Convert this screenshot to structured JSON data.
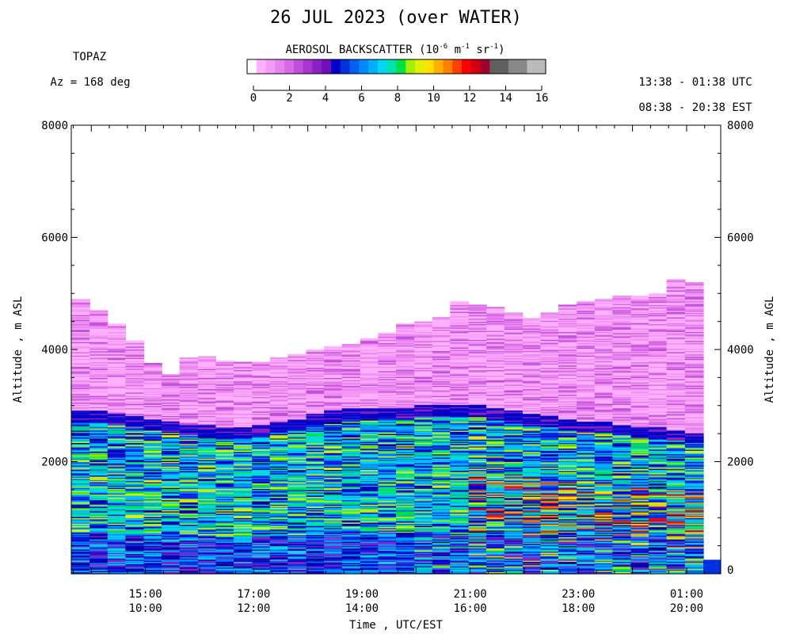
{
  "chart_data": {
    "type": "heatmap",
    "title": "26 JUL 2023 (over WATER)",
    "instrument": "TOPAZ",
    "azimuth_label": "Az = 168 deg",
    "time_utc_range": "13:38 - 01:38 UTC",
    "time_est_range": "08:38 - 20:38 EST",
    "colorbar": {
      "title": "AEROSOL BACKSCATTER (10",
      "title_exp": "-6",
      "title_mid": " m",
      "title_exp2": "-1",
      "title_mid2": " sr",
      "title_exp3": "-1",
      "title_end": ")",
      "range": [
        0,
        16
      ],
      "ticks": [
        "0",
        "2",
        "4",
        "6",
        "8",
        "10",
        "12",
        "14",
        "16"
      ],
      "colors": [
        "#ffffff",
        "#ffb0ff",
        "#f79af7",
        "#e783ef",
        "#d66ae6",
        "#c24fdc",
        "#a636cf",
        "#8a20c4",
        "#6e10bb",
        "#0000c8",
        "#0030e0",
        "#0060f0",
        "#0088ff",
        "#00b0ff",
        "#00d8f0",
        "#00e0b0",
        "#00e040",
        "#a0f000",
        "#e0f000",
        "#ffe000",
        "#ffb000",
        "#ff8000",
        "#ff4000",
        "#ff0000",
        "#d00010",
        "#a00030",
        "#606060",
        "#606060",
        "#888888",
        "#888888",
        "#bbbbbb",
        "#bbbbbb"
      ]
    },
    "xlabel": "Time , UTC/EST",
    "ylabel_left": "Altitude , m ASL",
    "ylabel_right": "Altitude , m AGL",
    "ylim": [
      0,
      8000
    ],
    "yticks_left": [
      "2000",
      "4000",
      "6000",
      "8000"
    ],
    "yticks_right": [
      "0",
      "2000",
      "4000",
      "6000",
      "8000"
    ],
    "y_right_zero_label": "0",
    "xticks_utc": [
      "15:00",
      "17:00",
      "19:00",
      "21:00",
      "23:00",
      "01:00"
    ],
    "xticks_est": [
      "10:00",
      "12:00",
      "14:00",
      "16:00",
      "18:00",
      "20:00"
    ],
    "time_range_hours": [
      13.63,
      25.63
    ],
    "xtick_hours": [
      15,
      17,
      19,
      21,
      23,
      25
    ],
    "profiles": [
      {
        "t": 13.63,
        "top": 4900,
        "pbl": 2900
      },
      {
        "t": 13.97,
        "top": 4700,
        "pbl": 2900
      },
      {
        "t": 14.3,
        "top": 4450,
        "pbl": 2850
      },
      {
        "t": 14.63,
        "top": 4150,
        "pbl": 2800
      },
      {
        "t": 14.97,
        "top": 3750,
        "pbl": 2750
      },
      {
        "t": 15.3,
        "top": 3550,
        "pbl": 2700
      },
      {
        "t": 15.63,
        "top": 3850,
        "pbl": 2650
      },
      {
        "t": 15.97,
        "top": 3870,
        "pbl": 2650
      },
      {
        "t": 16.3,
        "top": 3800,
        "pbl": 2600
      },
      {
        "t": 16.63,
        "top": 3780,
        "pbl": 2600
      },
      {
        "t": 16.97,
        "top": 3780,
        "pbl": 2650
      },
      {
        "t": 17.3,
        "top": 3850,
        "pbl": 2700
      },
      {
        "t": 17.63,
        "top": 3920,
        "pbl": 2750
      },
      {
        "t": 17.97,
        "top": 4000,
        "pbl": 2850
      },
      {
        "t": 18.3,
        "top": 4050,
        "pbl": 2900
      },
      {
        "t": 18.63,
        "top": 4100,
        "pbl": 2950
      },
      {
        "t": 18.97,
        "top": 4200,
        "pbl": 2950
      },
      {
        "t": 19.3,
        "top": 4300,
        "pbl": 2950
      },
      {
        "t": 19.63,
        "top": 4450,
        "pbl": 2950
      },
      {
        "t": 19.97,
        "top": 4500,
        "pbl": 3000
      },
      {
        "t": 20.3,
        "top": 4580,
        "pbl": 3000
      },
      {
        "t": 20.63,
        "top": 4850,
        "pbl": 3000
      },
      {
        "t": 20.97,
        "top": 4800,
        "pbl": 3000
      },
      {
        "t": 21.3,
        "top": 4750,
        "pbl": 2950
      },
      {
        "t": 21.63,
        "top": 4650,
        "pbl": 2900
      },
      {
        "t": 21.97,
        "top": 4550,
        "pbl": 2850
      },
      {
        "t": 22.3,
        "top": 4650,
        "pbl": 2800
      },
      {
        "t": 22.63,
        "top": 4800,
        "pbl": 2750
      },
      {
        "t": 22.97,
        "top": 4850,
        "pbl": 2700
      },
      {
        "t": 23.3,
        "top": 4900,
        "pbl": 2700
      },
      {
        "t": 23.63,
        "top": 4950,
        "pbl": 2650
      },
      {
        "t": 23.97,
        "top": 4950,
        "pbl": 2600
      },
      {
        "t": 24.3,
        "top": 5000,
        "pbl": 2600
      },
      {
        "t": 24.63,
        "top": 5250,
        "pbl": 2550
      },
      {
        "t": 24.97,
        "top": 5200,
        "pbl": 2500
      }
    ]
  }
}
